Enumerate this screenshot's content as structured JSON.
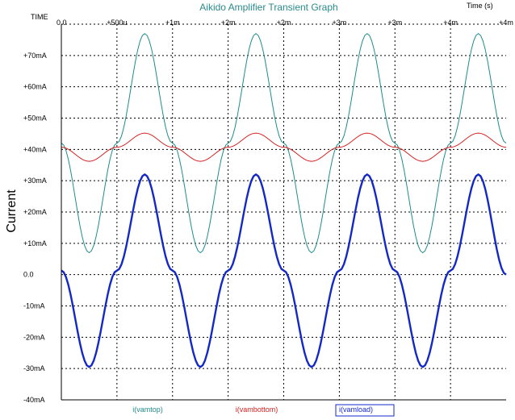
{
  "chart_data": {
    "type": "line",
    "title": "Aikido Amplifier Transient Graph",
    "xlabel": "Time  (s)",
    "x_axis_name": "TIME",
    "ylabel": "Current",
    "xlim": [
      0,
      0.004
    ],
    "ylim": [
      -40,
      80
    ],
    "x_unit": "s",
    "y_unit": "mA",
    "grid": true,
    "legend_position": "bottom",
    "x_ticks": [
      {
        "value": 0,
        "label": "0.0"
      },
      {
        "value": 0.0005,
        "label": "+500u"
      },
      {
        "value": 0.001,
        "label": "+1m"
      },
      {
        "value": 0.0015,
        "label": "+2m"
      },
      {
        "value": 0.002,
        "label": "+2m"
      },
      {
        "value": 0.0025,
        "label": "+3m"
      },
      {
        "value": 0.003,
        "label": "+3m"
      },
      {
        "value": 0.0035,
        "label": "+4m"
      },
      {
        "value": 0.004,
        "label": "+4m"
      }
    ],
    "y_ticks": [
      {
        "value": 70,
        "label": "+70mA"
      },
      {
        "value": 60,
        "label": "+60mA"
      },
      {
        "value": 50,
        "label": "+50mA"
      },
      {
        "value": 40,
        "label": "+40mA"
      },
      {
        "value": 30,
        "label": "+30mA"
      },
      {
        "value": 20,
        "label": "+20mA"
      },
      {
        "value": 10,
        "label": "+10mA"
      },
      {
        "value": 0,
        "label": "0.0"
      },
      {
        "value": -10,
        "label": "-10mA"
      },
      {
        "value": -20,
        "label": "-20mA"
      },
      {
        "value": -30,
        "label": "-30mA"
      },
      {
        "value": -40,
        "label": "-40mA"
      }
    ],
    "series": [
      {
        "name": "i(vamtop)",
        "color": "#1f8c8c",
        "width": 1,
        "x": [
          0,
          0.00025,
          0.0005,
          0.00075,
          0.001,
          0.00125,
          0.0015,
          0.00175,
          0.002,
          0.00225,
          0.0025,
          0.00275,
          0.003,
          0.00325,
          0.0035,
          0.00375,
          0.004
        ],
        "y": [
          42,
          7,
          42,
          77,
          42,
          7,
          42,
          77,
          42,
          7,
          42,
          77,
          42,
          7,
          42,
          77,
          42
        ]
      },
      {
        "name": "i(vambottom)",
        "color": "#d42020",
        "width": 1,
        "x": [
          0,
          0.00025,
          0.0005,
          0.00075,
          0.001,
          0.00125,
          0.0015,
          0.00175,
          0.002,
          0.00225,
          0.0025,
          0.00275,
          0.003,
          0.00325,
          0.0035,
          0.00375,
          0.004
        ],
        "y": [
          40.7,
          36.2,
          40.7,
          45.2,
          40.7,
          36.2,
          40.7,
          45.2,
          40.7,
          36.2,
          40.7,
          45.2,
          40.7,
          36.2,
          40.7,
          45.2,
          40.7
        ]
      },
      {
        "name": "i(vamload)",
        "color": "#1428c8",
        "width": 2.4,
        "x": [
          0,
          0.00025,
          0.0005,
          0.00075,
          0.001,
          0.00125,
          0.0015,
          0.00175,
          0.002,
          0.00225,
          0.0025,
          0.00275,
          0.003,
          0.00325,
          0.0035,
          0.00375,
          0.004
        ],
        "y": [
          1.3,
          -29.5,
          1.3,
          32,
          1.3,
          -29.5,
          1.3,
          32,
          1.3,
          -29.5,
          1.3,
          32,
          1.3,
          -29.5,
          1.3,
          32,
          0
        ]
      }
    ]
  },
  "colors": {
    "title": "#2a8a8a",
    "grid": "#000000",
    "axis": "#000000",
    "legend_box": "#1428c8"
  }
}
